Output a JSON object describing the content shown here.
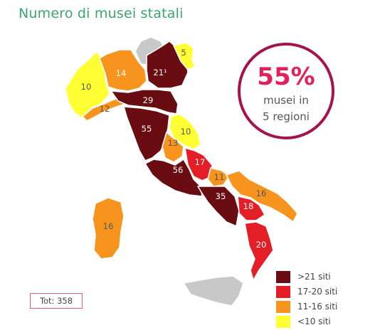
{
  "title": "Numero di musei statali",
  "highlight": {
    "percent": "55%",
    "line1": "musei in",
    "line2": "5 regioni"
  },
  "total_label": "Tot: 358",
  "colors": {
    "over21": "#6a0d12",
    "r17_20": "#e31e26",
    "r11_16": "#f7941d",
    "under10": "#ffff33",
    "no_data": "#c8c8c8",
    "circle_border": "#a3134e",
    "title": "#3aa66b"
  },
  "legend": [
    {
      "label": ">21 siti",
      "color": "#6a0d12"
    },
    {
      "label": "17-20 siti",
      "color": "#e31e26"
    },
    {
      "label": "11-16 siti",
      "color": "#f7941d"
    },
    {
      "label": "<10 siti",
      "color": "#ffff33"
    }
  ],
  "regions": [
    {
      "name": "Valle d'Aosta / Trentino-Alto Adige",
      "value": "",
      "color": "#c8c8c8"
    },
    {
      "name": "Piemonte",
      "value": "10",
      "color": "#ffff33"
    },
    {
      "name": "Lombardia",
      "value": "14",
      "color": "#f7941d"
    },
    {
      "name": "Veneto",
      "value": "21¹",
      "color": "#6a0d12"
    },
    {
      "name": "Friuli-Venezia Giulia",
      "value": "5",
      "color": "#ffff33"
    },
    {
      "name": "Liguria",
      "value": "12",
      "color": "#f7941d"
    },
    {
      "name": "Emilia-Romagna",
      "value": "29",
      "color": "#6a0d12"
    },
    {
      "name": "Toscana",
      "value": "55",
      "color": "#6a0d12"
    },
    {
      "name": "Marche",
      "value": "10",
      "color": "#ffff33"
    },
    {
      "name": "Umbria",
      "value": "13",
      "color": "#f7941d"
    },
    {
      "name": "Lazio",
      "value": "56",
      "color": "#6a0d12"
    },
    {
      "name": "Abruzzo",
      "value": "17",
      "color": "#e31e26"
    },
    {
      "name": "Molise",
      "value": "11",
      "color": "#f7941d"
    },
    {
      "name": "Campania",
      "value": "35",
      "color": "#6a0d12"
    },
    {
      "name": "Puglia",
      "value": "16",
      "color": "#f7941d"
    },
    {
      "name": "Basilicata",
      "value": "18",
      "color": "#e31e26"
    },
    {
      "name": "Calabria",
      "value": "20",
      "color": "#e31e26"
    },
    {
      "name": "Sardegna",
      "value": "16",
      "color": "#f7941d"
    },
    {
      "name": "Sicilia",
      "value": "",
      "color": "#c8c8c8"
    }
  ]
}
